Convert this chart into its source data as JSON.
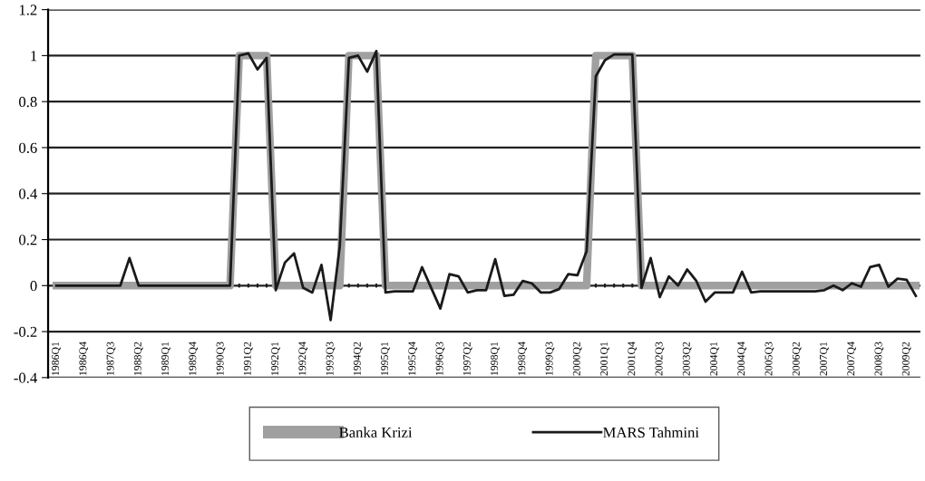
{
  "chart_data": {
    "type": "line",
    "categories": [
      "1986Q1",
      null,
      null,
      "1986Q4",
      null,
      null,
      "1987Q3",
      null,
      null,
      "1988Q2",
      null,
      null,
      "1989Q1",
      null,
      null,
      "1989Q4",
      null,
      null,
      "1990Q3",
      null,
      null,
      "1991Q2",
      null,
      null,
      "1992Q1",
      null,
      null,
      "1992Q4",
      null,
      null,
      "1993Q3",
      null,
      null,
      "1994Q2",
      null,
      null,
      "1995Q1",
      null,
      null,
      "1995Q4",
      null,
      null,
      "1996Q3",
      null,
      null,
      "1997Q2",
      null,
      null,
      "1998Q1",
      null,
      null,
      "1998Q4",
      null,
      null,
      "1999Q3",
      null,
      null,
      "2000Q2",
      null,
      null,
      "2001Q1",
      null,
      null,
      "2001Q4",
      null,
      null,
      "2002Q3",
      null,
      null,
      "2003Q2",
      null,
      null,
      "2004Q1",
      null,
      null,
      "2004Q4",
      null,
      null,
      "2005Q3",
      null,
      null,
      "2006Q2",
      null,
      null,
      "2007Q1",
      null,
      null,
      "2007Q4",
      null,
      null,
      "2008Q3",
      null,
      null,
      "2009Q2",
      null
    ],
    "series": [
      {
        "name": "Banka Krizi",
        "color": "#a0a0a0",
        "values": [
          0,
          0,
          0,
          0,
          0,
          0,
          0,
          0,
          0,
          0,
          0,
          0,
          0,
          0,
          0,
          0,
          0,
          0,
          0,
          0,
          1,
          1,
          1,
          1,
          0,
          0,
          0,
          0,
          0,
          0,
          0,
          0,
          1,
          1,
          1,
          1,
          0,
          0,
          0,
          0,
          0,
          0,
          0,
          0,
          0,
          0,
          0,
          0,
          0,
          0,
          0,
          0,
          0,
          0,
          0,
          0,
          0,
          0,
          0,
          1,
          1,
          1,
          1,
          1,
          0,
          0,
          0,
          0,
          0,
          0,
          0,
          0,
          0,
          0,
          0,
          0,
          0,
          0,
          0,
          0,
          0,
          0,
          0,
          0,
          0,
          0,
          0,
          0,
          0,
          0,
          0,
          0,
          0,
          0,
          0
        ]
      },
      {
        "name": "MARS Tahmini",
        "color": "#1a1a1a",
        "values": [
          0,
          0,
          0,
          0,
          0,
          0,
          0,
          0,
          0.12,
          0,
          0,
          0,
          0,
          0,
          0,
          0,
          0,
          0,
          0,
          0,
          1.0,
          1.01,
          0.94,
          0.99,
          -0.02,
          0.1,
          0.14,
          -0.01,
          -0.03,
          0.09,
          -0.15,
          0.17,
          0.99,
          1.0,
          0.93,
          1.02,
          -0.03,
          -0.025,
          -0.025,
          -0.025,
          0.08,
          -0.01,
          -0.1,
          0.05,
          0.04,
          -0.03,
          -0.02,
          -0.02,
          0.115,
          -0.045,
          -0.04,
          0.02,
          0.01,
          -0.03,
          -0.03,
          -0.015,
          0.05,
          0.045,
          0.15,
          0.91,
          0.98,
          1.005,
          1.005,
          1.005,
          -0.01,
          0.12,
          -0.05,
          0.04,
          0.0,
          0.07,
          0.02,
          -0.07,
          -0.03,
          -0.03,
          -0.03,
          0.06,
          -0.03,
          -0.025,
          -0.025,
          -0.025,
          -0.025,
          -0.025,
          -0.025,
          -0.025,
          -0.02,
          0.0,
          -0.02,
          0.01,
          -0.005,
          0.08,
          0.09,
          -0.005,
          0.03,
          0.025,
          -0.045
        ]
      }
    ],
    "ylim": [
      -0.4,
      1.2
    ],
    "yticks": [
      -0.4,
      -0.2,
      0,
      0.2,
      0.4,
      0.6,
      0.8,
      1,
      1.2
    ],
    "grid": "y",
    "legend": "bottom",
    "marker": "none",
    "line_style": "solid"
  }
}
